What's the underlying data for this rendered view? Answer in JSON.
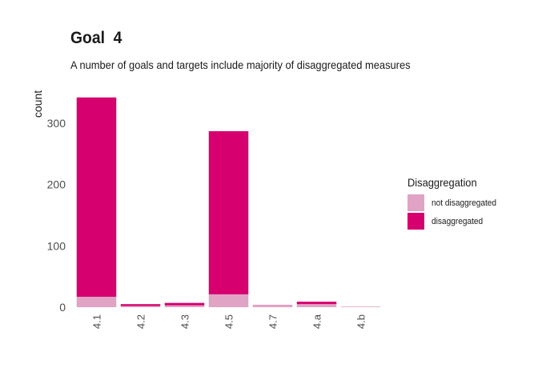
{
  "chart_data": {
    "type": "bar",
    "stacked": true,
    "title": "Goal  4",
    "subtitle": "A number of goals and targets include majority of disaggregated measures",
    "ylabel": "count",
    "xlabel": "",
    "categories": [
      "4.1",
      "4.2",
      "4.3",
      "4.5",
      "4.7",
      "4.a",
      "4.b"
    ],
    "series": [
      {
        "name": "not disaggregated",
        "color": "#e0a3c4",
        "values": [
          17,
          2,
          3,
          21,
          4,
          5,
          1
        ]
      },
      {
        "name": "disaggregated",
        "color": "#d6006f",
        "values": [
          325,
          3,
          4,
          266,
          0,
          4,
          0
        ]
      }
    ],
    "yticks": [
      0,
      100,
      200,
      300
    ],
    "ylim": [
      0,
      352
    ],
    "grid": false,
    "legend": {
      "title": "Disaggregation",
      "placement": "right",
      "order": [
        "not disaggregated",
        "disaggregated"
      ]
    }
  }
}
